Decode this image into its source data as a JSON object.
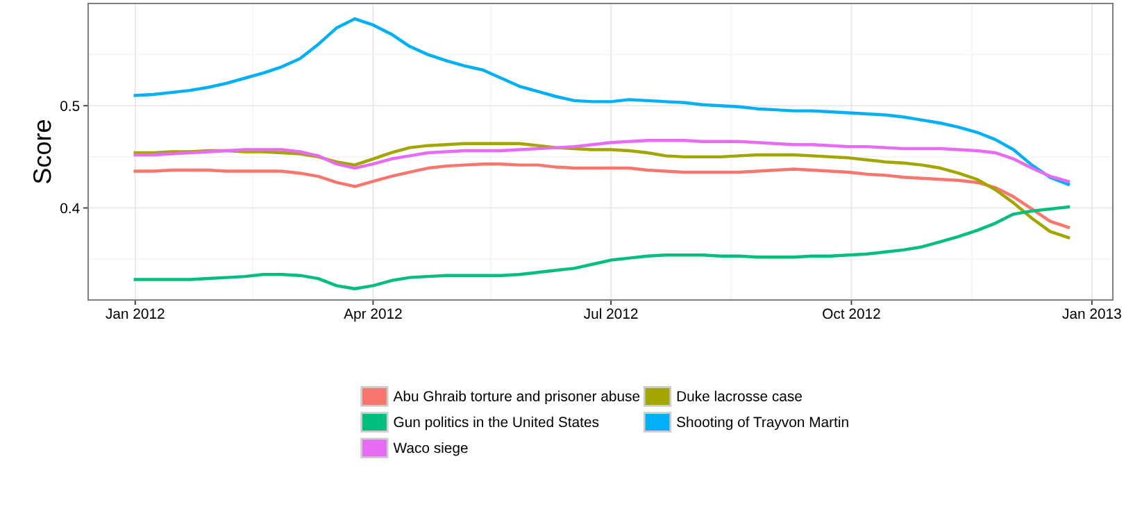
{
  "chart_data": {
    "type": "line",
    "ylabel": "Score",
    "x": [
      "2012-01-01",
      "2012-01-08",
      "2012-01-15",
      "2012-01-22",
      "2012-01-29",
      "2012-02-05",
      "2012-02-12",
      "2012-02-19",
      "2012-02-26",
      "2012-03-04",
      "2012-03-11",
      "2012-03-18",
      "2012-03-25",
      "2012-04-01",
      "2012-04-08",
      "2012-04-15",
      "2012-04-22",
      "2012-04-29",
      "2012-05-06",
      "2012-05-13",
      "2012-05-20",
      "2012-05-27",
      "2012-06-03",
      "2012-06-10",
      "2012-06-17",
      "2012-06-24",
      "2012-07-01",
      "2012-07-08",
      "2012-07-15",
      "2012-07-22",
      "2012-07-29",
      "2012-08-05",
      "2012-08-12",
      "2012-08-19",
      "2012-08-26",
      "2012-09-02",
      "2012-09-09",
      "2012-09-16",
      "2012-09-23",
      "2012-09-30",
      "2012-10-07",
      "2012-10-14",
      "2012-10-21",
      "2012-10-28",
      "2012-11-04",
      "2012-11-11",
      "2012-11-18",
      "2012-11-25",
      "2012-12-02",
      "2012-12-09",
      "2012-12-16",
      "2012-12-23"
    ],
    "series": [
      {
        "name": "Abu Ghraib torture and prisoner abuse",
        "color": "#f8766d",
        "values": [
          0.436,
          0.436,
          0.437,
          0.437,
          0.437,
          0.436,
          0.436,
          0.436,
          0.436,
          0.434,
          0.431,
          0.425,
          0.421,
          0.426,
          0.431,
          0.435,
          0.439,
          0.441,
          0.442,
          0.443,
          0.443,
          0.442,
          0.442,
          0.44,
          0.439,
          0.439,
          0.439,
          0.439,
          0.437,
          0.436,
          0.435,
          0.435,
          0.435,
          0.435,
          0.436,
          0.437,
          0.438,
          0.437,
          0.436,
          0.435,
          0.433,
          0.432,
          0.43,
          0.429,
          0.428,
          0.427,
          0.425,
          0.42,
          0.411,
          0.399,
          0.387,
          0.381
        ]
      },
      {
        "name": "Duke lacrosse case",
        "color": "#a3a500",
        "values": [
          0.454,
          0.454,
          0.455,
          0.455,
          0.456,
          0.456,
          0.455,
          0.455,
          0.454,
          0.453,
          0.45,
          0.445,
          0.442,
          0.448,
          0.454,
          0.459,
          0.461,
          0.462,
          0.463,
          0.463,
          0.463,
          0.463,
          0.461,
          0.459,
          0.458,
          0.457,
          0.457,
          0.456,
          0.454,
          0.451,
          0.45,
          0.45,
          0.45,
          0.451,
          0.452,
          0.452,
          0.452,
          0.451,
          0.45,
          0.449,
          0.447,
          0.445,
          0.444,
          0.442,
          0.439,
          0.434,
          0.428,
          0.418,
          0.405,
          0.39,
          0.377,
          0.371
        ]
      },
      {
        "name": "Gun politics in the United States",
        "color": "#00bf7d",
        "values": [
          0.33,
          0.33,
          0.33,
          0.33,
          0.331,
          0.332,
          0.333,
          0.335,
          0.335,
          0.334,
          0.331,
          0.324,
          0.321,
          0.324,
          0.329,
          0.332,
          0.333,
          0.334,
          0.334,
          0.334,
          0.334,
          0.335,
          0.337,
          0.339,
          0.341,
          0.345,
          0.349,
          0.351,
          0.353,
          0.354,
          0.354,
          0.354,
          0.353,
          0.353,
          0.352,
          0.352,
          0.352,
          0.353,
          0.353,
          0.354,
          0.355,
          0.357,
          0.359,
          0.362,
          0.367,
          0.372,
          0.378,
          0.385,
          0.394,
          0.397,
          0.399,
          0.401
        ]
      },
      {
        "name": "Shooting of Trayvon Martin",
        "color": "#00b0f6",
        "values": [
          0.51,
          0.511,
          0.513,
          0.515,
          0.518,
          0.522,
          0.527,
          0.532,
          0.538,
          0.546,
          0.56,
          0.576,
          0.585,
          0.579,
          0.57,
          0.558,
          0.55,
          0.544,
          0.539,
          0.535,
          0.527,
          0.519,
          0.514,
          0.509,
          0.505,
          0.504,
          0.504,
          0.506,
          0.505,
          0.504,
          0.503,
          0.501,
          0.5,
          0.499,
          0.497,
          0.496,
          0.495,
          0.495,
          0.494,
          0.493,
          0.492,
          0.491,
          0.489,
          0.486,
          0.483,
          0.479,
          0.474,
          0.467,
          0.457,
          0.442,
          0.43,
          0.423
        ]
      },
      {
        "name": "Waco siege",
        "color": "#e76bf3",
        "values": [
          0.452,
          0.452,
          0.453,
          0.454,
          0.455,
          0.456,
          0.457,
          0.457,
          0.457,
          0.455,
          0.451,
          0.443,
          0.439,
          0.443,
          0.448,
          0.451,
          0.454,
          0.455,
          0.456,
          0.456,
          0.456,
          0.457,
          0.458,
          0.459,
          0.46,
          0.462,
          0.464,
          0.465,
          0.466,
          0.466,
          0.466,
          0.465,
          0.465,
          0.465,
          0.464,
          0.463,
          0.462,
          0.462,
          0.461,
          0.46,
          0.46,
          0.459,
          0.458,
          0.458,
          0.458,
          0.457,
          0.456,
          0.454,
          0.448,
          0.439,
          0.431,
          0.426
        ]
      }
    ],
    "xlim": [
      "2011-12-14",
      "2013-01-09"
    ],
    "xticks": [
      {
        "value": "2012-01-01",
        "label": "Jan 2012"
      },
      {
        "value": "2012-02-15",
        "label": null
      },
      {
        "value": "2012-04-01",
        "label": "Apr 2012"
      },
      {
        "value": "2012-05-16",
        "label": null
      },
      {
        "value": "2012-07-01",
        "label": "Jul 2012"
      },
      {
        "value": "2012-08-16",
        "label": null
      },
      {
        "value": "2012-10-01",
        "label": "Oct 2012"
      },
      {
        "value": "2012-11-16",
        "label": null
      },
      {
        "value": "2013-01-01",
        "label": "Jan 2013"
      }
    ],
    "ylim": [
      0.31,
      0.6
    ],
    "yticks": [
      {
        "value": 0.35,
        "label": null
      },
      0.4,
      {
        "value": 0.45,
        "label": null
      },
      0.5,
      {
        "value": 0.55,
        "label": null
      }
    ],
    "grid": true,
    "legend": "bottom",
    "line_style": "solid",
    "marker": "none"
  }
}
